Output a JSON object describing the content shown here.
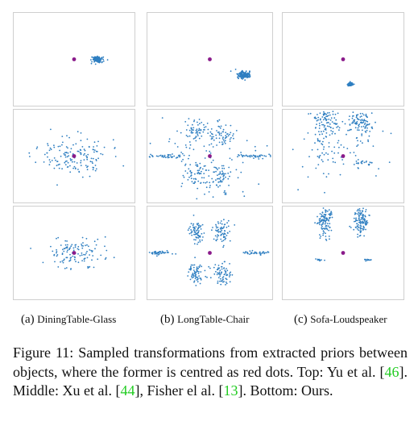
{
  "figure": {
    "rows": [
      {
        "label": "Top",
        "panels": [
          {
            "pattern": "blob",
            "blob_offset": [
              0.38,
              0.0
            ],
            "blob_spread": 0.045
          },
          {
            "pattern": "blob",
            "blob_offset": [
              0.55,
              0.34
            ],
            "blob_spread": 0.05
          },
          {
            "pattern": "blob",
            "blob_offset": [
              0.12,
              0.54
            ],
            "blob_spread": 0.02
          }
        ]
      },
      {
        "label": "Middle",
        "panels": [
          {
            "pattern": "scatter_ring"
          },
          {
            "pattern": "chairs_wide_sparse"
          },
          {
            "pattern": "sofa_speaker_sparse"
          }
        ]
      },
      {
        "label": "Bottom",
        "panels": [
          {
            "pattern": "scatter_tight"
          },
          {
            "pattern": "chairs_wide_clustered"
          },
          {
            "pattern": "sofa_speaker_clustered"
          }
        ]
      }
    ],
    "colors": {
      "center_dot": "#8a1a8a",
      "sample_dot": "#2f7fc1",
      "panel_border": "#cfcfcf"
    },
    "subcaptions": [
      {
        "tag": "(a)",
        "name": "DiningTable-Glass"
      },
      {
        "tag": "(b)",
        "name": "LongTable-Chair"
      },
      {
        "tag": "(c)",
        "name": "Sofa-Loudspeaker"
      }
    ]
  },
  "caption": {
    "label": "Figure 11:",
    "text_1": "Sampled transformations from extracted priors between objects, where the former is centred as red dots. Top: Yu et al. [",
    "ref_1": "46",
    "text_2": "]. Middle: Xu et al. [",
    "ref_2": "44",
    "text_3": "], Fisher el al. [",
    "ref_3": "13",
    "text_4": "]. Bottom: Ours."
  }
}
